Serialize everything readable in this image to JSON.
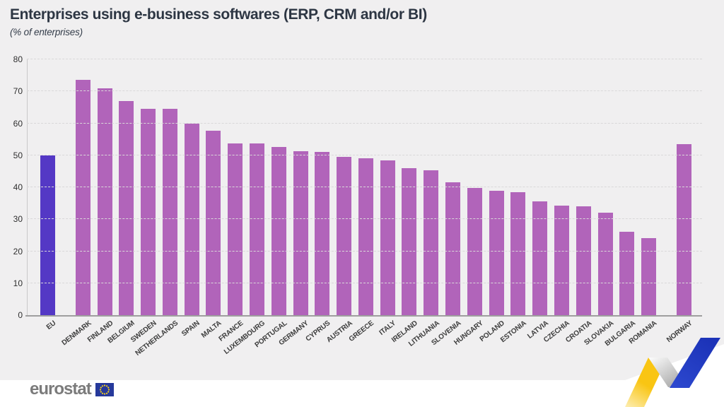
{
  "title": "Enterprises using e-business softwares (ERP, CRM and/or BI)",
  "subtitle": "(% of enterprises)",
  "footer": {
    "logo_text": "eurostat"
  },
  "colors": {
    "panel_background": "#f0eff0",
    "bar": "#b164ba",
    "eu_bar": "#5438c5",
    "title_text": "#2d3643",
    "gridline": "#d9d8d9",
    "baseline": "#9e9e9e",
    "tick_label": "#2f2f2f",
    "country_label": "#3d3d3d",
    "logo_gray": "#7b7b7b",
    "flag_blue": "#26399b",
    "star_yellow": "#f8d21a",
    "deco_yellow": "#f9c513",
    "deco_blue": "#2140c7"
  },
  "chart_data": {
    "type": "bar",
    "title": "Enterprises using e-business softwares (ERP, CRM and/or BI)",
    "subtitle": "(% of enterprises)",
    "xlabel": "",
    "ylabel": "% of enterprises",
    "ylim": [
      0,
      80
    ],
    "yticks": [
      0,
      10,
      20,
      30,
      40,
      50,
      60,
      70,
      80
    ],
    "grid": "dashed-horizontal",
    "legend": "none",
    "highlight_index": 0,
    "spacer_after_indices": [
      0,
      27
    ],
    "categories": [
      "EU",
      "DENMARK",
      "FINLAND",
      "BELGIUM",
      "SWEDEN",
      "NETHERLANDS",
      "SPAIN",
      "MALTA",
      "FRANCE",
      "LUXEMBOURG",
      "PORTUGAL",
      "GERMANY",
      "CYPRUS",
      "AUSTRIA",
      "GREECE",
      "ITALY",
      "IRELAND",
      "LITHUANIA",
      "SLOVENIA",
      "HUNGARY",
      "POLAND",
      "ESTONIA",
      "LATVIA",
      "CZECHIA",
      "CROATIA",
      "SLOVAKIA",
      "BULGARIA",
      "ROMANIA",
      "NORWAY"
    ],
    "values": [
      50,
      73.5,
      71,
      67,
      64.5,
      64.5,
      59.8,
      57.7,
      53.8,
      53.8,
      52.5,
      51.2,
      51.1,
      49.6,
      49,
      48.5,
      46,
      45.2,
      41.5,
      39.8,
      38.8,
      38.5,
      35.6,
      34.2,
      34.1,
      32,
      26,
      24.2,
      53.5
    ]
  }
}
